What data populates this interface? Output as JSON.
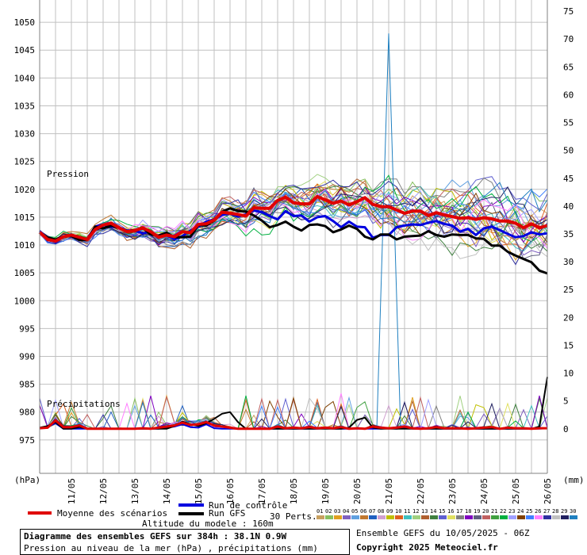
{
  "chart_data": {
    "type": "line",
    "title": "Diagramme des ensembles GEFS sur 384h : 38.1N 0.9W",
    "subtitle": "Pression au niveau de la mer (hPa) , précipitations (mm)",
    "left_axis_unit": "(hPa)",
    "right_axis_unit": "(mm)",
    "left_ylim": [
      969,
      1054
    ],
    "right_ylim": [
      -8,
      77
    ],
    "left_ticks": [
      "1050",
      "1045",
      "1040",
      "1035",
      "1030",
      "1025",
      "1020",
      "1015",
      "1010",
      "1005",
      "1000",
      "995",
      "990",
      "985",
      "980",
      "975"
    ],
    "right_ticks": [
      "75",
      "70",
      "65",
      "60",
      "55",
      "50",
      "45",
      "40",
      "35",
      "30",
      "25",
      "20",
      "15",
      "10",
      "5",
      "0"
    ],
    "x_labels": [
      "11/05",
      "12/05",
      "13/05",
      "14/05",
      "15/05",
      "16/05",
      "17/05",
      "18/05",
      "19/05",
      "20/05",
      "21/05",
      "22/05",
      "23/05",
      "24/05",
      "25/05",
      "26/05"
    ],
    "panel_labels": {
      "pressure": "Pression",
      "precip": "Précipitations"
    },
    "grid": true,
    "steps": 65,
    "mean_pressure": [
      1012.3,
      1011.0,
      1010.7,
      1011.5,
      1011.8,
      1011.4,
      1011.0,
      1012.8,
      1013.6,
      1013.9,
      1013.1,
      1012.4,
      1012.6,
      1013.1,
      1012.4,
      1011.4,
      1011.8,
      1011.5,
      1012.4,
      1012.2,
      1013.7,
      1013.8,
      1014.5,
      1015.9,
      1015.7,
      1015.5,
      1015.2,
      1016.7,
      1016.6,
      1016.6,
      1018.0,
      1018.6,
      1017.6,
      1017.4,
      1017.4,
      1018.7,
      1018.1,
      1017.5,
      1017.9,
      1017.2,
      1017.8,
      1018.5,
      1017.3,
      1016.9,
      1016.9,
      1016.3,
      1015.7,
      1016.1,
      1016.1,
      1015.3,
      1015.8,
      1015.4,
      1015.1,
      1014.8,
      1014.9,
      1014.6,
      1014.9,
      1014.7,
      1014.3,
      1014.3,
      1013.9,
      1013.1,
      1013.8,
      1013.1,
      1013.5
    ],
    "control_pressure": [
      1012.5,
      1011.1,
      1010.5,
      1011.5,
      1011.8,
      1011.1,
      1011.1,
      1013.3,
      1013.6,
      1013.3,
      1013.2,
      1012.6,
      1012.6,
      1012.1,
      1012.4,
      1011.3,
      1011.8,
      1011.0,
      1011.6,
      1012.6,
      1013.3,
      1014.2,
      1014.6,
      1015.4,
      1015.6,
      1015.1,
      1015.5,
      1016.2,
      1015.9,
      1015.2,
      1014.6,
      1016.1,
      1015.2,
      1015.3,
      1014.2,
      1015.0,
      1015.2,
      1014.3,
      1013.2,
      1014.2,
      1013.3,
      1013.2,
      1011.3,
      1011.8,
      1011.8,
      1013.2,
      1013.5,
      1013.7,
      1013.6,
      1014.0,
      1014.3,
      1013.8,
      1013.5,
      1012.4,
      1012.9,
      1011.8,
      1013.0,
      1013.3,
      1012.7,
      1012.0,
      1011.4,
      1011.6,
      1012.3,
      1011.9,
      1012.1
    ],
    "gfs_pressure": [
      1012.2,
      1011.3,
      1011.0,
      1011.5,
      1011.6,
      1010.9,
      1010.9,
      1013.3,
      1013.0,
      1013.5,
      1013.1,
      1012.5,
      1012.7,
      1013.1,
      1011.9,
      1011.7,
      1012.2,
      1011.4,
      1011.4,
      1011.5,
      1013.6,
      1013.5,
      1014.4,
      1016.0,
      1016.6,
      1016.1,
      1016.0,
      1015.3,
      1014.4,
      1013.2,
      1013.6,
      1014.2,
      1013.3,
      1012.6,
      1013.6,
      1013.7,
      1013.4,
      1012.3,
      1012.8,
      1013.5,
      1012.9,
      1011.5,
      1011.0,
      1011.9,
      1011.9,
      1011.0,
      1011.5,
      1011.6,
      1011.7,
      1012.5,
      1011.8,
      1011.5,
      1011.9,
      1011.8,
      1011.8,
      1011.2,
      1011.1,
      1009.9,
      1009.9,
      1008.8,
      1008.1,
      1007.5,
      1006.9,
      1005.4,
      1004.9
    ],
    "mean_precip": [
      0.1,
      0.2,
      1.5,
      0.3,
      0.3,
      0.6,
      0,
      0,
      0,
      0,
      0,
      0,
      0,
      0.1,
      0,
      0.2,
      0.4,
      0.6,
      1.1,
      0.7,
      0.8,
      1.2,
      0.6,
      0.4,
      0.2,
      0,
      0,
      0,
      0,
      0,
      0.4,
      0.1,
      0.2,
      0.1,
      0.3,
      0.1,
      0.2,
      0.1,
      0.3,
      0,
      0.1,
      0,
      0.4,
      0.2,
      0.1,
      0.2,
      0.4,
      0.1,
      0,
      0.1,
      0.3,
      0.1,
      0.1,
      0.1,
      0,
      0.1,
      0.2,
      0.3,
      0,
      0.2,
      0.1,
      0.1,
      0,
      0.1,
      0.1
    ],
    "control_precip": [
      0.1,
      0.3,
      1.0,
      0,
      0,
      0,
      0,
      0,
      0,
      0,
      0,
      0,
      0,
      0,
      0,
      0,
      0.2,
      0.4,
      0.8,
      0.3,
      0.2,
      0.8,
      0.1,
      0,
      0,
      0,
      0,
      0,
      0,
      0,
      0,
      0,
      0,
      0,
      0,
      0,
      0.1,
      0,
      0,
      0,
      0,
      0,
      0,
      0,
      0.1,
      0,
      0.2,
      0,
      0,
      0,
      0,
      0,
      0,
      0,
      0.2,
      0,
      0,
      0,
      0,
      0,
      0,
      0,
      0,
      0,
      0.1
    ],
    "gfs_precip": [
      0.2,
      0.5,
      1.2,
      0,
      0,
      0.3,
      0,
      0,
      0,
      0,
      0,
      0,
      0,
      0,
      0,
      0,
      0,
      0.5,
      1.3,
      0.8,
      0.5,
      1.0,
      1.8,
      2.7,
      3.0,
      1.2,
      0,
      0,
      0,
      0,
      0,
      0,
      0,
      0,
      0,
      0,
      0,
      0,
      0,
      0.2,
      1.6,
      2.0,
      0.2,
      0,
      0,
      0,
      0,
      0,
      0,
      0,
      0,
      0,
      0,
      0,
      0,
      0,
      0,
      0,
      0,
      0,
      0,
      0,
      0,
      0.4,
      9.3
    ],
    "spike_precip": {
      "step": 44.0,
      "value": 71.0
    },
    "member_colors": [
      "#c8a060",
      "#88c060",
      "#e0a020",
      "#8060c0",
      "#60a0e0",
      "#c07830",
      "#2060c0",
      "#d0a0d0",
      "#c0c000",
      "#e06020",
      "#40c0c0",
      "#a0d080",
      "#b06030",
      "#408040",
      "#6060d0",
      "#e0e060",
      "#808080",
      "#8000c0",
      "#606080",
      "#c06060",
      "#40a040",
      "#00b040",
      "#a0a0ff",
      "#804000",
      "#4080ff",
      "#ff80ff",
      "#3030a0",
      "#c0c0c0",
      "#202060",
      "#2080c0"
    ],
    "member_ids": [
      "01",
      "02",
      "03",
      "04",
      "05",
      "06",
      "07",
      "08",
      "09",
      "10",
      "11",
      "12",
      "13",
      "14",
      "15",
      "16",
      "17",
      "18",
      "19",
      "20",
      "21",
      "22",
      "23",
      "24",
      "25",
      "26",
      "27",
      "28",
      "29",
      "30"
    ]
  },
  "legend": {
    "mean": "Moyenne des scénarios",
    "control": "Run de contrôle",
    "gfs": "Run GFS",
    "members_label": "30 Perts.",
    "altitude": "Altitude du modele : 160m"
  },
  "footer": {
    "run_info": "Ensemble GEFS du 10/05/2025 - 06Z",
    "copyright": "Copyright 2025 Meteociel.fr"
  },
  "colors": {
    "mean": "#e00000",
    "control": "#0000e0",
    "gfs": "#000000",
    "grid": "#c0c0c0"
  }
}
